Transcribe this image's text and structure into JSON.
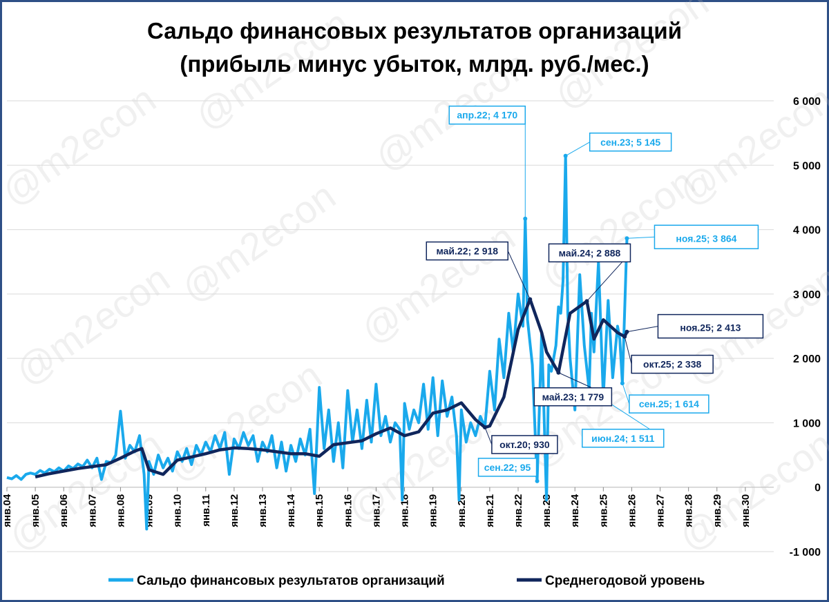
{
  "watermark": "@m2econ",
  "colors": {
    "monthly": "#1AA9EC",
    "average": "#10265C",
    "grid": "#D9D9D9",
    "frame": "#2E4F86"
  },
  "chart_data": {
    "type": "line",
    "title_line1": "Сальдо финансовых результатов организаций",
    "title_line2": "(прибыль минус убыток, млрд. руб./мес.)",
    "ylim": [
      -1000,
      6000
    ],
    "yticks": [
      -1000,
      0,
      1000,
      2000,
      3000,
      4000,
      5000,
      6000
    ],
    "ytick_labels": [
      "-1 000",
      "0",
      "1 000",
      "2 000",
      "3 000",
      "4 000",
      "5 000",
      "6 000"
    ],
    "xlim": [
      2004.0,
      2031.0
    ],
    "xticks": [
      2004,
      2005,
      2006,
      2007,
      2008,
      2009,
      2010,
      2011,
      2012,
      2013,
      2014,
      2015,
      2016,
      2017,
      2018,
      2019,
      2020,
      2021,
      2022,
      2023,
      2024,
      2025,
      2026,
      2027,
      2028,
      2029,
      2030
    ],
    "xtick_labels": [
      "янв.04",
      "янв.05",
      "янв.06",
      "янв.07",
      "янв.08",
      "янв.09",
      "янв.10",
      "янв.11",
      "янв.12",
      "янв.13",
      "янв.14",
      "янв.15",
      "янв.16",
      "янв.17",
      "янв.18",
      "янв.19",
      "янв.20",
      "янв.21",
      "янв.22",
      "янв.23",
      "янв.24",
      "янв.25",
      "янв.26",
      "янв.27",
      "янв.28",
      "янв.29",
      "янв.30"
    ],
    "grid": "horizontal",
    "legend_position": "bottom",
    "series": [
      {
        "name": "Сальдо финансовых результатов организаций",
        "color": "#1AA9EC",
        "points": [
          [
            2004.0,
            150
          ],
          [
            2004.17,
            130
          ],
          [
            2004.33,
            180
          ],
          [
            2004.5,
            120
          ],
          [
            2004.67,
            200
          ],
          [
            2004.83,
            220
          ],
          [
            2005.0,
            200
          ],
          [
            2005.17,
            260
          ],
          [
            2005.33,
            220
          ],
          [
            2005.5,
            280
          ],
          [
            2005.67,
            240
          ],
          [
            2005.83,
            300
          ],
          [
            2006.0,
            250
          ],
          [
            2006.17,
            330
          ],
          [
            2006.33,
            290
          ],
          [
            2006.5,
            360
          ],
          [
            2006.67,
            320
          ],
          [
            2006.83,
            420
          ],
          [
            2007.0,
            300
          ],
          [
            2007.17,
            450
          ],
          [
            2007.33,
            120
          ],
          [
            2007.5,
            400
          ],
          [
            2007.67,
            380
          ],
          [
            2007.83,
            500
          ],
          [
            2008.0,
            1180
          ],
          [
            2008.17,
            450
          ],
          [
            2008.33,
            650
          ],
          [
            2008.5,
            550
          ],
          [
            2008.67,
            800
          ],
          [
            2008.83,
            200
          ],
          [
            2008.92,
            -650
          ],
          [
            2009.0,
            400
          ],
          [
            2009.17,
            200
          ],
          [
            2009.33,
            500
          ],
          [
            2009.5,
            300
          ],
          [
            2009.67,
            450
          ],
          [
            2009.83,
            250
          ],
          [
            2010.0,
            550
          ],
          [
            2010.17,
            400
          ],
          [
            2010.33,
            600
          ],
          [
            2010.5,
            350
          ],
          [
            2010.67,
            650
          ],
          [
            2010.83,
            500
          ],
          [
            2011.0,
            700
          ],
          [
            2011.17,
            550
          ],
          [
            2011.33,
            800
          ],
          [
            2011.5,
            600
          ],
          [
            2011.67,
            850
          ],
          [
            2011.83,
            200
          ],
          [
            2012.0,
            750
          ],
          [
            2012.17,
            600
          ],
          [
            2012.33,
            850
          ],
          [
            2012.5,
            650
          ],
          [
            2012.67,
            800
          ],
          [
            2012.83,
            400
          ],
          [
            2013.0,
            700
          ],
          [
            2013.17,
            550
          ],
          [
            2013.33,
            800
          ],
          [
            2013.5,
            300
          ],
          [
            2013.67,
            700
          ],
          [
            2013.83,
            250
          ],
          [
            2014.0,
            650
          ],
          [
            2014.17,
            400
          ],
          [
            2014.33,
            750
          ],
          [
            2014.5,
            500
          ],
          [
            2014.67,
            900
          ],
          [
            2014.83,
            -100
          ],
          [
            2015.0,
            1550
          ],
          [
            2015.17,
            600
          ],
          [
            2015.33,
            1200
          ],
          [
            2015.5,
            400
          ],
          [
            2015.67,
            1000
          ],
          [
            2015.83,
            300
          ],
          [
            2016.0,
            1500
          ],
          [
            2016.17,
            700
          ],
          [
            2016.33,
            1200
          ],
          [
            2016.5,
            600
          ],
          [
            2016.67,
            1350
          ],
          [
            2016.83,
            700
          ],
          [
            2017.0,
            1600
          ],
          [
            2017.17,
            800
          ],
          [
            2017.33,
            1100
          ],
          [
            2017.5,
            700
          ],
          [
            2017.67,
            1000
          ],
          [
            2017.83,
            900
          ],
          [
            2017.92,
            -200
          ],
          [
            2018.0,
            1300
          ],
          [
            2018.17,
            900
          ],
          [
            2018.33,
            1200
          ],
          [
            2018.5,
            1000
          ],
          [
            2018.67,
            1600
          ],
          [
            2018.83,
            900
          ],
          [
            2019.0,
            1700
          ],
          [
            2019.17,
            800
          ],
          [
            2019.33,
            1650
          ],
          [
            2019.5,
            1100
          ],
          [
            2019.67,
            1400
          ],
          [
            2019.83,
            800
          ],
          [
            2019.92,
            -200
          ],
          [
            2020.0,
            1200
          ],
          [
            2020.17,
            700
          ],
          [
            2020.33,
            1000
          ],
          [
            2020.5,
            800
          ],
          [
            2020.67,
            1100
          ],
          [
            2020.83,
            930
          ],
          [
            2021.0,
            1800
          ],
          [
            2021.17,
            1200
          ],
          [
            2021.33,
            2300
          ],
          [
            2021.5,
            1700
          ],
          [
            2021.67,
            2700
          ],
          [
            2021.83,
            2100
          ],
          [
            2022.0,
            3000
          ],
          [
            2022.17,
            2500
          ],
          [
            2022.25,
            4170
          ],
          [
            2022.33,
            2600
          ],
          [
            2022.5,
            1900
          ],
          [
            2022.67,
            95
          ],
          [
            2022.83,
            2400
          ],
          [
            2023.0,
            -200
          ],
          [
            2023.08,
            1900
          ],
          [
            2023.17,
            1800
          ],
          [
            2023.33,
            2200
          ],
          [
            2023.42,
            2800
          ],
          [
            2023.5,
            2700
          ],
          [
            2023.58,
            3200
          ],
          [
            2023.67,
            5145
          ],
          [
            2023.75,
            2700
          ],
          [
            2023.83,
            2000
          ],
          [
            2024.0,
            1200
          ],
          [
            2024.17,
            3300
          ],
          [
            2024.33,
            2200
          ],
          [
            2024.5,
            1511
          ],
          [
            2024.58,
            2700
          ],
          [
            2024.67,
            2100
          ],
          [
            2024.83,
            3500
          ],
          [
            2025.0,
            1400
          ],
          [
            2025.17,
            2900
          ],
          [
            2025.33,
            1700
          ],
          [
            2025.5,
            2500
          ],
          [
            2025.58,
            2300
          ],
          [
            2025.67,
            1614
          ],
          [
            2025.83,
            3864
          ]
        ]
      },
      {
        "name": "Среднегодовой уровень",
        "color": "#10265C",
        "points": [
          [
            2005.0,
            160
          ],
          [
            2005.5,
            210
          ],
          [
            2006.0,
            250
          ],
          [
            2006.5,
            290
          ],
          [
            2007.0,
            320
          ],
          [
            2007.5,
            350
          ],
          [
            2008.0,
            450
          ],
          [
            2008.5,
            560
          ],
          [
            2008.75,
            600
          ],
          [
            2009.0,
            270
          ],
          [
            2009.5,
            200
          ],
          [
            2010.0,
            420
          ],
          [
            2010.5,
            470
          ],
          [
            2011.0,
            520
          ],
          [
            2011.5,
            580
          ],
          [
            2012.0,
            610
          ],
          [
            2012.5,
            600
          ],
          [
            2013.0,
            580
          ],
          [
            2013.5,
            550
          ],
          [
            2014.0,
            520
          ],
          [
            2014.5,
            520
          ],
          [
            2015.0,
            480
          ],
          [
            2015.5,
            660
          ],
          [
            2016.0,
            690
          ],
          [
            2016.5,
            720
          ],
          [
            2017.0,
            830
          ],
          [
            2017.5,
            920
          ],
          [
            2018.0,
            800
          ],
          [
            2018.5,
            860
          ],
          [
            2019.0,
            1150
          ],
          [
            2019.5,
            1200
          ],
          [
            2020.0,
            1310
          ],
          [
            2020.5,
            1050
          ],
          [
            2020.83,
            930
          ],
          [
            2021.0,
            950
          ],
          [
            2021.5,
            1400
          ],
          [
            2022.0,
            2450
          ],
          [
            2022.42,
            2918
          ],
          [
            2022.83,
            2400
          ],
          [
            2023.0,
            2100
          ],
          [
            2023.42,
            1779
          ],
          [
            2023.83,
            2700
          ],
          [
            2024.42,
            2888
          ],
          [
            2024.67,
            2300
          ],
          [
            2025.0,
            2600
          ],
          [
            2025.5,
            2400
          ],
          [
            2025.75,
            2338
          ],
          [
            2025.83,
            2413
          ]
        ]
      }
    ],
    "annotations": [
      {
        "text": "апр.22; 4 170",
        "series": 0,
        "x": 2022.25,
        "y": 4170
      },
      {
        "text": "сен.23; 5 145",
        "series": 0,
        "x": 2023.67,
        "y": 5145
      },
      {
        "text": "ноя.25; 3 864",
        "series": 0,
        "x": 2025.83,
        "y": 3864
      },
      {
        "text": "сен.22; 95",
        "series": 0,
        "x": 2022.67,
        "y": 95
      },
      {
        "text": "июн.24; 1 511",
        "series": 0,
        "x": 2024.5,
        "y": 1511
      },
      {
        "text": "сен.25; 1 614",
        "series": 0,
        "x": 2025.67,
        "y": 1614
      },
      {
        "text": "май.22; 2 918",
        "series": 1,
        "x": 2022.42,
        "y": 2918
      },
      {
        "text": "май.24; 2 888",
        "series": 1,
        "x": 2024.42,
        "y": 2888
      },
      {
        "text": "май.23; 1 779",
        "series": 1,
        "x": 2023.42,
        "y": 1779
      },
      {
        "text": "окт.20; 930",
        "series": 1,
        "x": 2020.83,
        "y": 930
      },
      {
        "text": "окт.25; 2 338",
        "series": 1,
        "x": 2025.75,
        "y": 2338
      },
      {
        "text": "ноя.25; 2 413",
        "series": 1,
        "x": 2025.83,
        "y": 2413
      }
    ]
  }
}
